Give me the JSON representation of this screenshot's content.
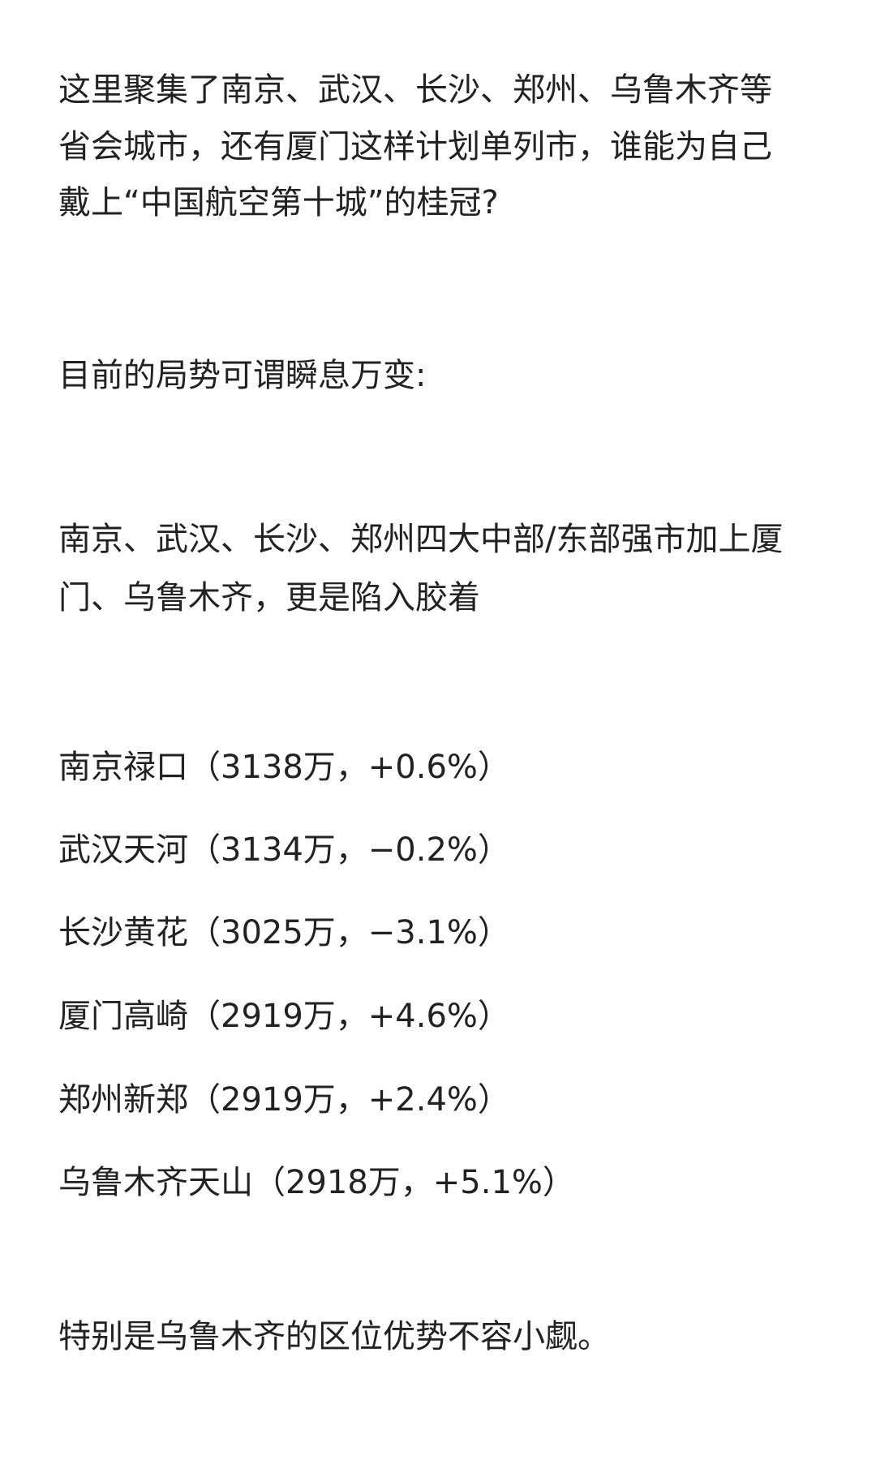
{
  "paragraph1": [
    "这里聚集了南京、武汉、长沙、郑州、乌鲁木齐等",
    "省会城市，还有厦门这样计划单列市，谁能为自己",
    "戴上“中国航空第十城”的桂冠?"
  ],
  "paragraph2": "目前的局势可谓瞬息万变:",
  "paragraph3": [
    "南京、武汉、长沙、郑州四大中部/东部强市加上厦",
    "门、乌鲁木齐，更是陷入胶着"
  ],
  "airports": [
    "南京禄口（3138万，+0.6%）",
    "武汉天河（3134万，−0.2%）",
    "长沙黄花（3025万，−3.1%）",
    "厦门高崎（2919万，+4.6%）",
    "郑州新郑（2919万，+2.4%）",
    "乌鲁木齐天山（2918万，+5.1%）"
  ],
  "paragraph4": "特别是乌鲁木齐的区位优势不容小觑。"
}
